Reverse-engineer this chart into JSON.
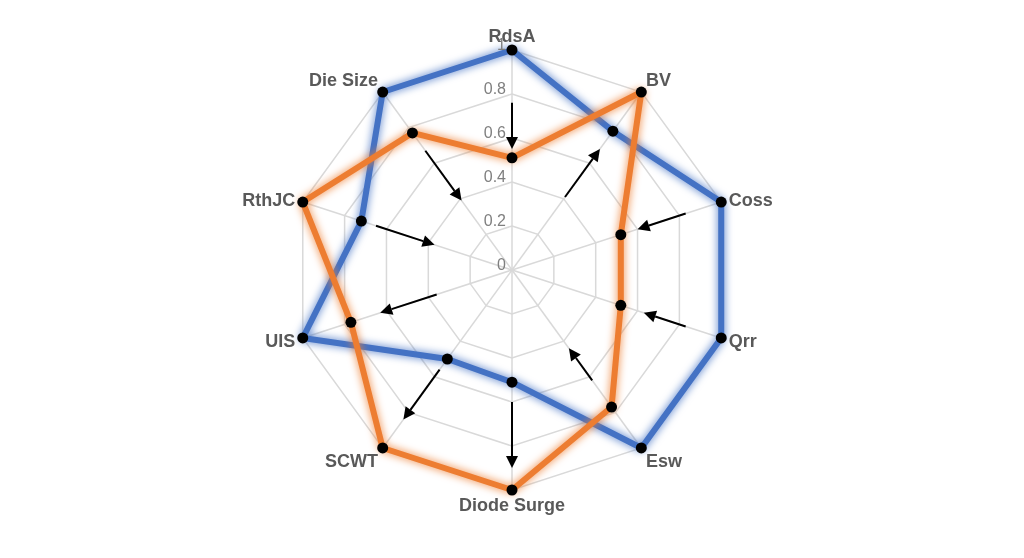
{
  "chart_data": {
    "type": "radar",
    "categories": [
      "RdsA",
      "BV",
      "Coss",
      "Qrr",
      "Esw",
      "Diode Surge",
      "SCWT",
      "UIS",
      "RthJC",
      "Die Size"
    ],
    "series": [
      {
        "color": "#4472c4",
        "values": [
          1.0,
          0.78,
          1.0,
          1.0,
          1.0,
          0.51,
          0.5,
          1.0,
          0.72,
          1.0
        ]
      },
      {
        "color": "#ed7d31",
        "values": [
          0.51,
          1.0,
          0.52,
          0.52,
          0.77,
          1.0,
          1.0,
          0.77,
          1.0,
          0.77
        ]
      }
    ],
    "ylim": [
      0,
      1
    ],
    "yticks": [
      0,
      0.2,
      0.4,
      0.6,
      0.8,
      1
    ],
    "grid": true,
    "marker": "circle",
    "legend": false
  }
}
